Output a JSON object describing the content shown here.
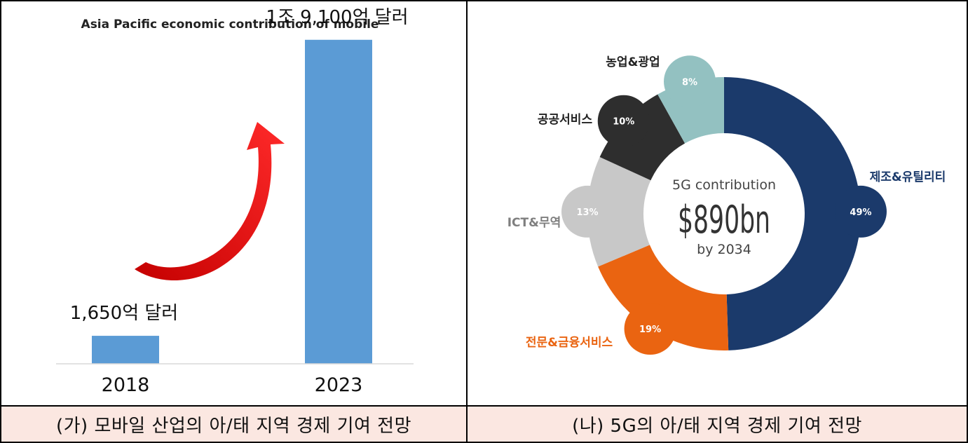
{
  "chart_data": [
    {
      "type": "bar",
      "title": "Asia Pacific economic contribution of mobile",
      "categories": [
        "2018",
        "2023"
      ],
      "values": [
        165,
        1910
      ],
      "data_labels": [
        "1,650억 달러",
        "1조 9,100억 달러"
      ],
      "ylim": [
        0,
        2000
      ],
      "bar_color": "#5b9bd5",
      "arrow_color": "#e01515",
      "grid": false
    },
    {
      "type": "pie",
      "center_text": {
        "line1": "5G contribution",
        "value": "$890bn",
        "line2": "by 2034"
      },
      "slices": [
        {
          "label": "제조&유틸리티",
          "value": 49,
          "pct_label": "49%",
          "color": "#1b3a6b",
          "label_color": "#1b3a6b"
        },
        {
          "label": "전문&금융서비스",
          "value": 19,
          "pct_label": "19%",
          "color": "#ea6411",
          "label_color": "#ea6411"
        },
        {
          "label": "ICT&무역",
          "value": 13,
          "pct_label": "13%",
          "color": "#c8c8c8",
          "label_color": "#7f7f7f"
        },
        {
          "label": "공공서비스",
          "value": 10,
          "pct_label": "10%",
          "color": "#2e2e2e",
          "label_color": "#222222"
        },
        {
          "label": "농업&광업",
          "value": 8,
          "pct_label": "8%",
          "color": "#93c1c1",
          "label_color": "#222222"
        }
      ]
    }
  ],
  "captions": {
    "left": "(가) 모바일 산업의 아/태 지역 경제 기여 전망",
    "right": "(나) 5G의 아/태 지역 경제 기여 전망"
  }
}
